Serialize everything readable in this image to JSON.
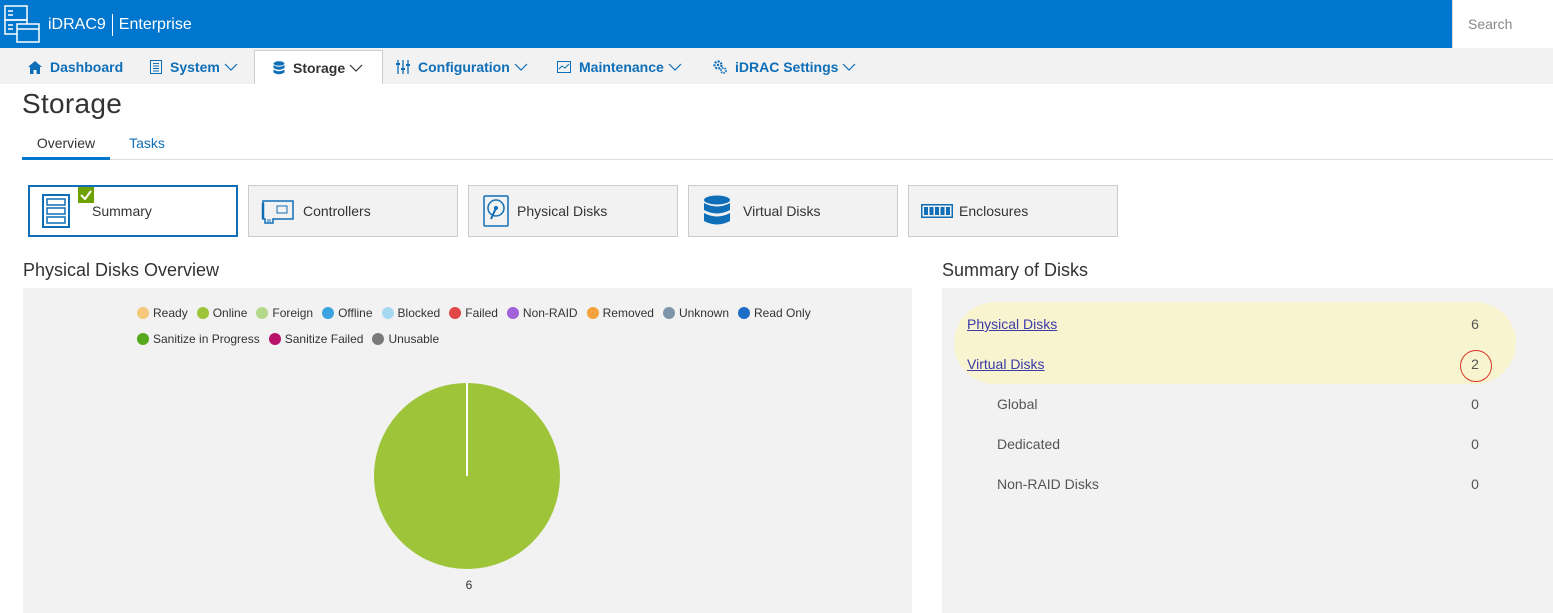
{
  "header": {
    "product": "iDRAC9",
    "edition": "Enterprise",
    "search_placeholder": "Search"
  },
  "nav": {
    "items": [
      {
        "label": "Dashboard",
        "icon": "home-icon",
        "dropdown": false
      },
      {
        "label": "System",
        "icon": "server-icon",
        "dropdown": true
      },
      {
        "label": "Storage",
        "icon": "database-icon",
        "dropdown": true,
        "active": true
      },
      {
        "label": "Configuration",
        "icon": "sliders-icon",
        "dropdown": true
      },
      {
        "label": "Maintenance",
        "icon": "monitor-icon",
        "dropdown": true
      },
      {
        "label": "iDRAC Settings",
        "icon": "gears-icon",
        "dropdown": true
      }
    ]
  },
  "page": {
    "title": "Storage",
    "tabs": [
      {
        "label": "Overview",
        "active": true
      },
      {
        "label": "Tasks",
        "active": false
      }
    ]
  },
  "tiles": [
    {
      "label": "Summary",
      "icon": "summary-icon",
      "active": true
    },
    {
      "label": "Controllers",
      "icon": "controller-card-icon"
    },
    {
      "label": "Physical Disks",
      "icon": "hard-disk-icon"
    },
    {
      "label": "Virtual Disks",
      "icon": "disk-stack-icon"
    },
    {
      "label": "Enclosures",
      "icon": "enclosure-icon"
    }
  ],
  "physical_overview": {
    "title": "Physical Disks Overview",
    "legend": [
      {
        "label": "Ready",
        "color": "#f6c97a"
      },
      {
        "label": "Online",
        "color": "#9ec539"
      },
      {
        "label": "Foreign",
        "color": "#b5d98a"
      },
      {
        "label": "Offline",
        "color": "#3ba3e0"
      },
      {
        "label": "Blocked",
        "color": "#a6d8f2"
      },
      {
        "label": "Failed",
        "color": "#e04848"
      },
      {
        "label": "Non-RAID",
        "color": "#a062d6"
      },
      {
        "label": "Removed",
        "color": "#f2a23a"
      },
      {
        "label": "Unknown",
        "color": "#7d95aa"
      },
      {
        "label": "Read Only",
        "color": "#1e6ec8"
      },
      {
        "label": "Sanitize in Progress",
        "color": "#56a81c"
      },
      {
        "label": "Sanitize Failed",
        "color": "#b8126a"
      },
      {
        "label": "Unusable",
        "color": "#7a7a7a"
      }
    ]
  },
  "chart_data": {
    "type": "pie",
    "title": "",
    "slices": [
      {
        "label": "Online",
        "value": 6,
        "color": "#9ec539"
      }
    ],
    "data_label": "6"
  },
  "summary": {
    "title": "Summary of Disks",
    "rows": [
      {
        "label": "Physical Disks",
        "value": "6",
        "link": true
      },
      {
        "label": "Virtual Disks",
        "value": "2",
        "link": true,
        "circled": true
      },
      {
        "label": "Global",
        "value": "0",
        "link": false
      },
      {
        "label": "Dedicated",
        "value": "0",
        "link": false
      },
      {
        "label": "Non-RAID Disks",
        "value": "0",
        "link": false
      }
    ]
  }
}
